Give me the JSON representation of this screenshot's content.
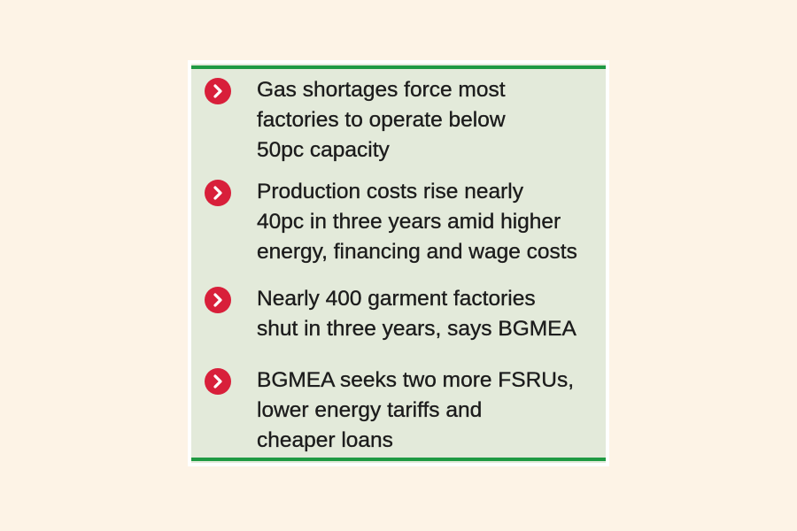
{
  "items": [
    {
      "lines": [
        "Gas shortages force most",
        "factories to operate below",
        "50pc capacity"
      ]
    },
    {
      "lines": [
        "Production costs rise nearly",
        "40pc in three years amid higher",
        "energy, financing and wage costs"
      ]
    },
    {
      "lines": [
        "Nearly 400 garment factories",
        "shut in three years, says BGMEA"
      ]
    },
    {
      "lines": [
        "BGMEA seeks two more FSRUs,",
        "lower energy tariffs and",
        "cheaper loans"
      ]
    }
  ]
}
